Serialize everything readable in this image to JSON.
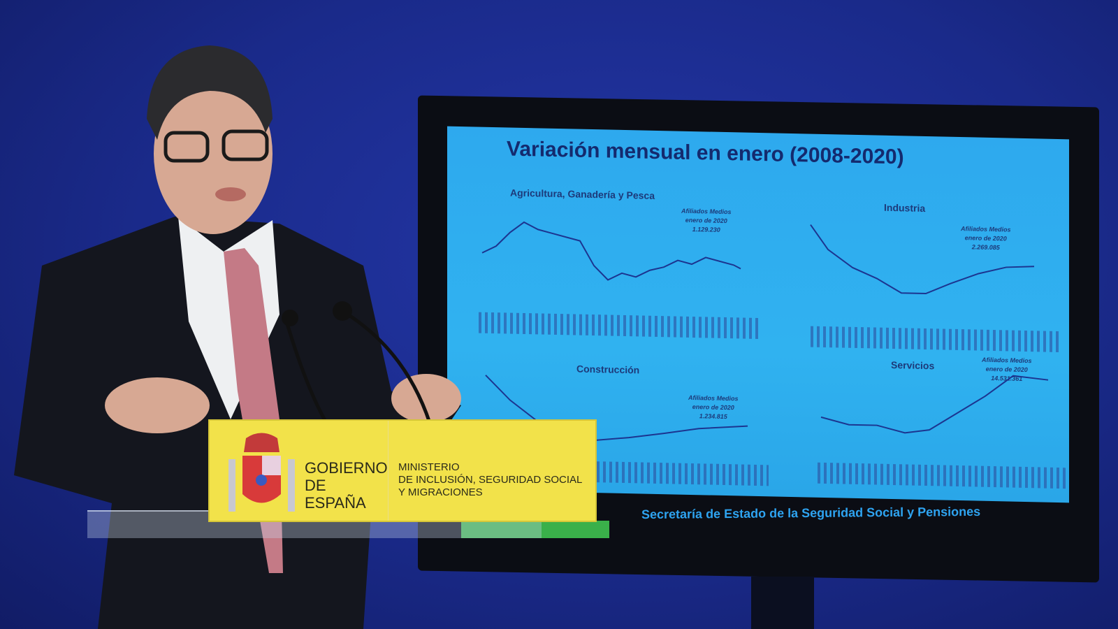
{
  "slide": {
    "title": "Variación mensual en enero (2008-2020)",
    "panels": [
      {
        "title": "Agricultura, Ganadería y Pesca",
        "aff_label": "Afiliados Medios",
        "aff_period": "enero de 2020",
        "aff_value": "1.129.230"
      },
      {
        "title": "Industria",
        "aff_label": "Afiliados Medios",
        "aff_period": "enero de 2020",
        "aff_value": "2.269.085"
      },
      {
        "title": "Construcción",
        "aff_label": "Afiliados Medios",
        "aff_period": "enero de 2020",
        "aff_value": "1.234.815"
      },
      {
        "title": "Servicios",
        "aff_label": "Afiliados Medios",
        "aff_period": "enero de 2020",
        "aff_value": "14.531.361"
      }
    ],
    "footer": "Secretaría de Estado de la Seguridad Social y Pensiones",
    "background_color": "#30b2f0"
  },
  "sign": {
    "government": [
      "GOBIERNO",
      "DE ESPAÑA"
    ],
    "ministry": [
      "MINISTERIO",
      "DE INCLUSIÓN, SEGURIDAD SOCIAL",
      "Y MIGRACIONES"
    ],
    "color": "#f2e24a"
  },
  "backdrop_color": "#1a2a8c"
}
